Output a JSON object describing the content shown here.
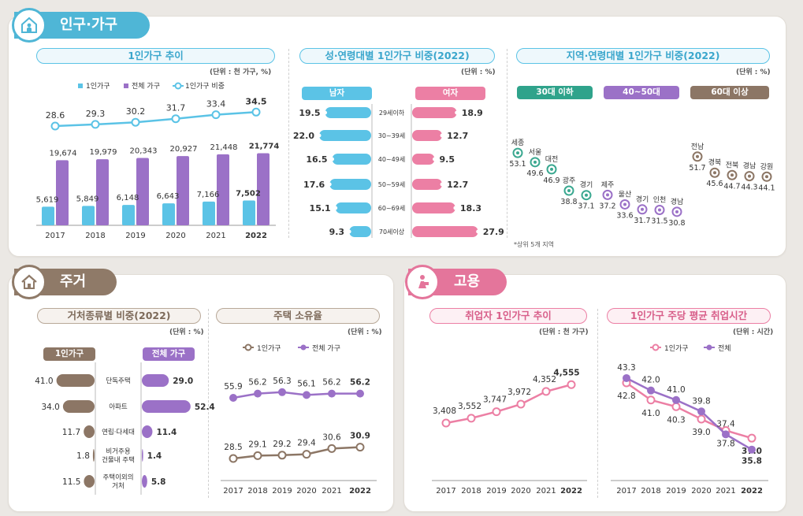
{
  "colors": {
    "blue": "#5bc3e6",
    "purple": "#9b71c7",
    "teal": "#3aa890",
    "brown": "#8c7665",
    "pink": "#ec7fa4",
    "gray": "#a09c98"
  },
  "sections": {
    "population": {
      "title": "인구·가구",
      "icon": "house-person-icon"
    },
    "housing": {
      "title": "주거",
      "icon": "house-icon"
    },
    "employment": {
      "title": "고용",
      "icon": "worker-icon"
    }
  },
  "chart_data": [
    {
      "id": "single_household_trend",
      "type": "bar",
      "title": "1인가구 추이",
      "unit": "(단위 : 천 가구, %)",
      "legend": [
        "1인가구",
        "전체 가구",
        "1인가구 비중"
      ],
      "categories": [
        "2017",
        "2018",
        "2019",
        "2020",
        "2021",
        "2022"
      ],
      "series": [
        {
          "name": "1인가구",
          "values": [
            5619,
            5849,
            6148,
            6643,
            7166,
            7502
          ],
          "labels": [
            "5,619",
            "5,849",
            "6,148",
            "6,643",
            "7,166",
            "7,502"
          ]
        },
        {
          "name": "전체 가구",
          "values": [
            19674,
            19979,
            20343,
            20927,
            21448,
            21774
          ],
          "labels": [
            "19,674",
            "19,979",
            "20,343",
            "20,927",
            "21,448",
            "21,774"
          ]
        },
        {
          "name": "1인가구 비중",
          "type": "line",
          "values": [
            28.6,
            29.3,
            30.2,
            31.7,
            33.4,
            34.5
          ],
          "labels": [
            "28.6",
            "29.3",
            "30.2",
            "31.7",
            "33.4",
            "34.5"
          ]
        }
      ]
    },
    {
      "id": "sex_age_share",
      "type": "bar",
      "title": "성·연령대별 1인가구 비중(2022)",
      "unit": "(단위 : %)",
      "left_header": "남자",
      "right_header": "여자",
      "categories": [
        "29세이하",
        "30~39세",
        "40~49세",
        "50~59세",
        "60~69세",
        "70세이상"
      ],
      "series": [
        {
          "name": "남자",
          "values": [
            19.5,
            22.0,
            16.5,
            17.6,
            15.1,
            9.3
          ],
          "labels": [
            "19.5",
            "22.0",
            "16.5",
            "17.6",
            "15.1",
            "9.3"
          ]
        },
        {
          "name": "여자",
          "values": [
            18.9,
            12.7,
            9.5,
            12.7,
            18.3,
            27.9
          ],
          "labels": [
            "18.9",
            "12.7",
            "9.5",
            "12.7",
            "18.3",
            "27.9"
          ]
        }
      ]
    },
    {
      "id": "region_age_share",
      "type": "scatter",
      "title": "지역·연령대별 1인가구 비중(2022)",
      "unit": "(단위 : %)",
      "note": "*상위 5개 지역",
      "groups": [
        {
          "name": "30대 이하",
          "regions": [
            "세종",
            "서울",
            "대전",
            "광주",
            "경기"
          ],
          "values": [
            53.1,
            49.6,
            46.9,
            38.8,
            37.1
          ],
          "labels": [
            "53.1",
            "49.6",
            "46.9",
            "38.8",
            "37.1"
          ]
        },
        {
          "name": "40~50대",
          "regions": [
            "제주",
            "울산",
            "경기",
            "인천",
            "경남"
          ],
          "values": [
            37.2,
            33.6,
            31.7,
            31.5,
            30.8
          ],
          "labels": [
            "37.2",
            "33.6",
            "31.7",
            "31.5",
            "30.8"
          ]
        },
        {
          "name": "60대 이상",
          "regions": [
            "전남",
            "경북",
            "전북",
            "경남",
            "강원"
          ],
          "values": [
            51.7,
            45.6,
            44.7,
            44.3,
            44.1
          ],
          "labels": [
            "51.7",
            "45.6",
            "44.7",
            "44.3",
            "44.1"
          ]
        }
      ]
    },
    {
      "id": "dwelling_type_share",
      "type": "bar",
      "title": "거처종류별 비중(2022)",
      "unit": "(단위 : %)",
      "left_header": "1인가구",
      "right_header": "전체 가구",
      "categories": [
        "단독주택",
        "아파트",
        "연립·다세대",
        "비거주용 건물내 주택",
        "주택이외의 거처"
      ],
      "category_lines": [
        [
          "단독주택"
        ],
        [
          "아파트"
        ],
        [
          "연립·다세대"
        ],
        [
          "비거주용",
          "건물내 주택"
        ],
        [
          "주택이외의",
          "거처"
        ]
      ],
      "series": [
        {
          "name": "1인가구",
          "values": [
            41.0,
            34.0,
            11.7,
            1.8,
            11.5
          ],
          "labels": [
            "41.0",
            "34.0",
            "11.7",
            "1.8",
            "11.5"
          ]
        },
        {
          "name": "전체 가구",
          "values": [
            29.0,
            52.4,
            11.4,
            1.4,
            5.8
          ],
          "labels": [
            "29.0",
            "52.4",
            "11.4",
            "1.4",
            "5.8"
          ]
        }
      ]
    },
    {
      "id": "home_ownership",
      "type": "line",
      "title": "주택 소유율",
      "unit": "(단위 : %)",
      "categories": [
        "2017",
        "2018",
        "2019",
        "2020",
        "2021",
        "2022"
      ],
      "series": [
        {
          "name": "1인가구",
          "values": [
            28.5,
            29.1,
            29.2,
            29.4,
            30.6,
            30.9
          ],
          "labels": [
            "28.5",
            "29.1",
            "29.2",
            "29.4",
            "30.6",
            "30.9"
          ]
        },
        {
          "name": "전체 가구",
          "values": [
            55.9,
            56.2,
            56.3,
            56.1,
            56.2,
            56.2
          ],
          "labels": [
            "55.9",
            "56.2",
            "56.3",
            "56.1",
            "56.2",
            "56.2"
          ]
        }
      ]
    },
    {
      "id": "employed_single_trend",
      "type": "line",
      "title": "취업자 1인가구 추이",
      "unit": "(단위 : 천 가구)",
      "categories": [
        "2017",
        "2018",
        "2019",
        "2020",
        "2021",
        "2022"
      ],
      "series": [
        {
          "name": "취업자 1인가구",
          "values": [
            3408,
            3552,
            3747,
            3972,
            4352,
            4555
          ],
          "labels": [
            "3,408",
            "3,552",
            "3,747",
            "3,972",
            "4,352",
            "4,555"
          ]
        }
      ]
    },
    {
      "id": "weekly_work_hours",
      "type": "line",
      "title": "1인가구 주당 평균 취업시간",
      "unit": "(단위 : 시간)",
      "categories": [
        "2017",
        "2018",
        "2019",
        "2020",
        "2021",
        "2022"
      ],
      "series": [
        {
          "name": "1인가구",
          "values": [
            42.8,
            41.0,
            40.3,
            39.0,
            37.8,
            37.0
          ],
          "labels": [
            "42.8",
            "41.0",
            "40.3",
            "39.0",
            "37.8",
            "37.0"
          ]
        },
        {
          "name": "전체",
          "values": [
            43.3,
            42.0,
            41.0,
            39.8,
            37.4,
            35.8
          ],
          "labels": [
            "43.3",
            "42.0",
            "41.0",
            "39.8",
            "37.4",
            "35.8"
          ]
        }
      ]
    }
  ]
}
